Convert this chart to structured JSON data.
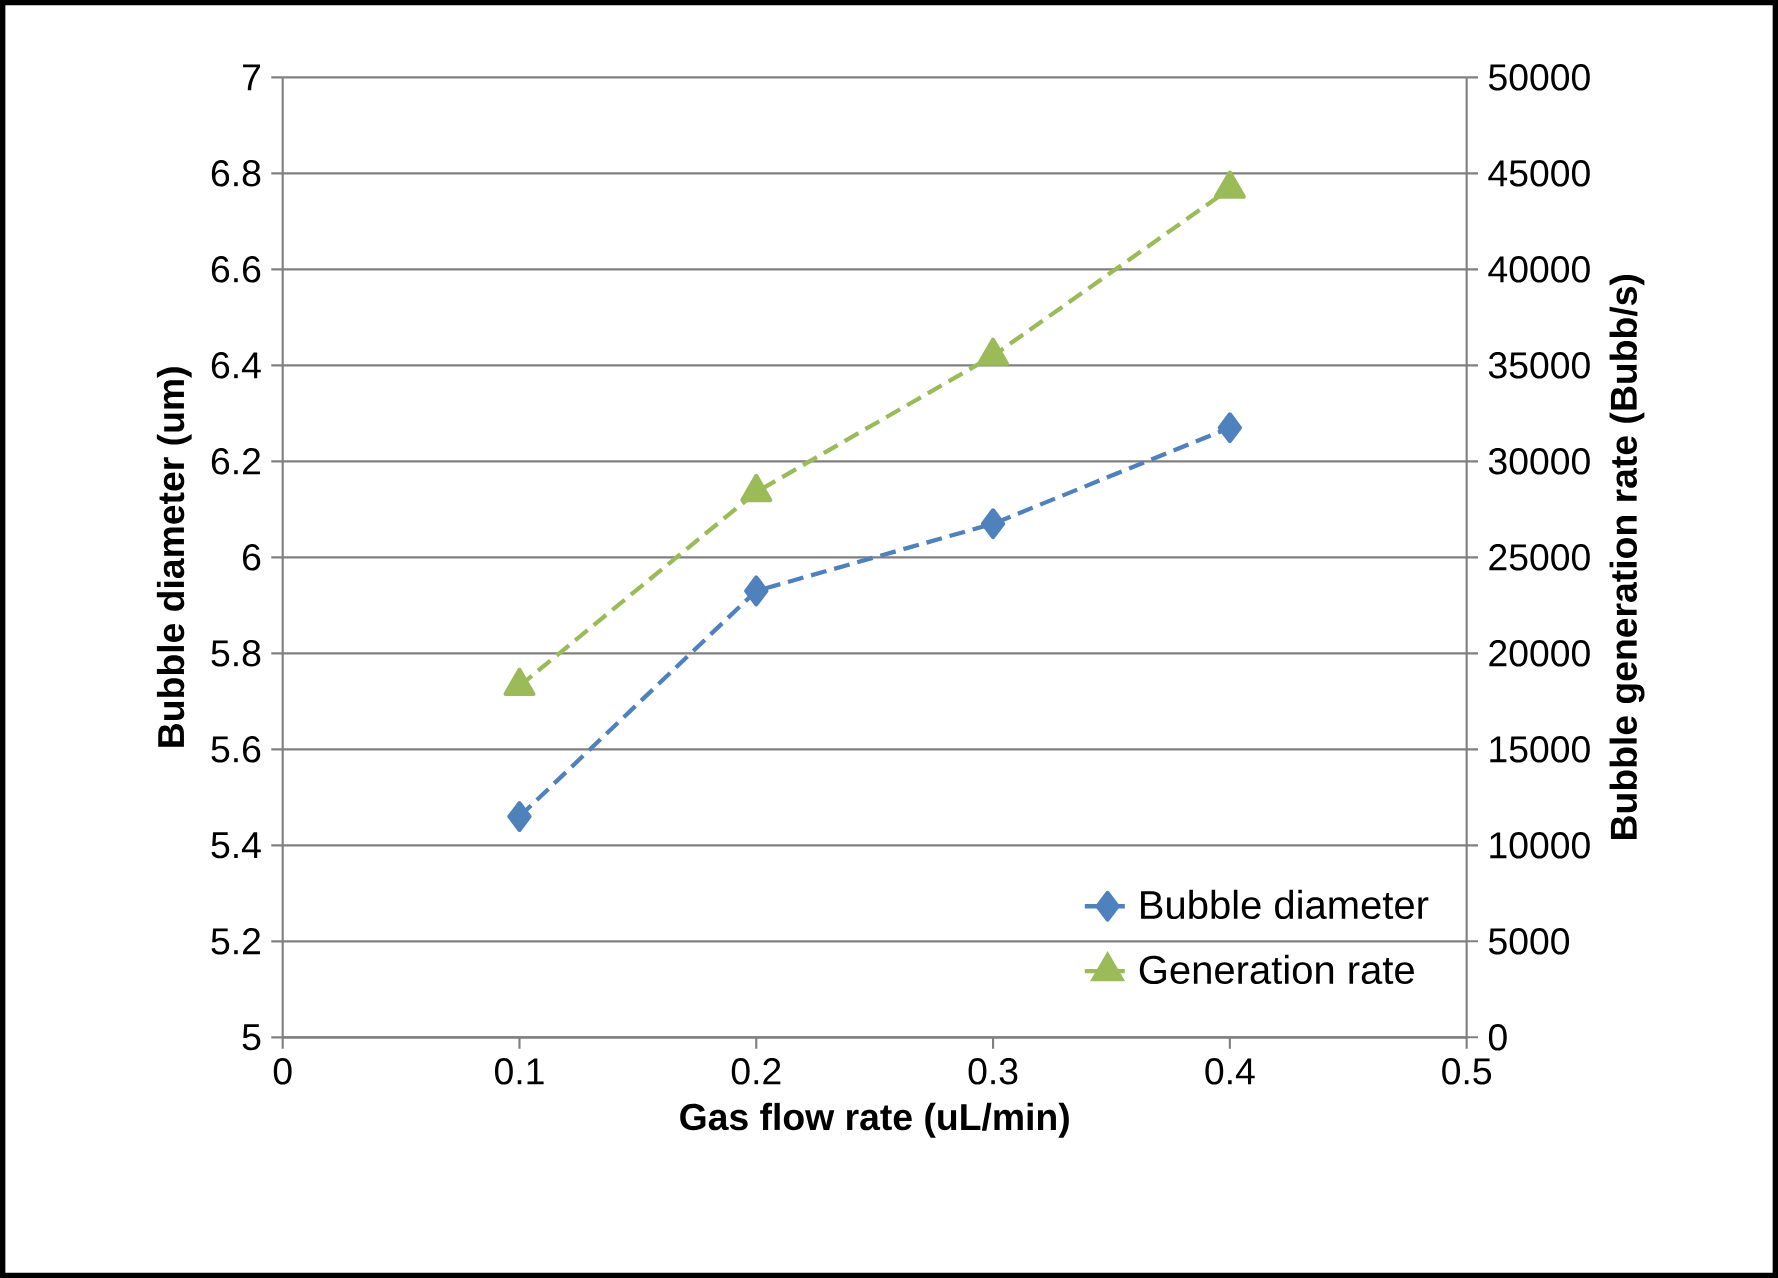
{
  "chart_data": {
    "type": "line",
    "xlabel": "Gas flow rate (uL/min)",
    "ylabel": "Bubble diameter (um)",
    "y2label": "Bubble generation rate (Bubb/s)",
    "x": [
      0.1,
      0.2,
      0.3,
      0.4
    ],
    "series": [
      {
        "name": "Bubble diameter",
        "color": "#4f81bd",
        "values": [
          5.46,
          5.93,
          6.07,
          6.27
        ],
        "marker": "diamond"
      },
      {
        "name": "Generation rate",
        "color": "#9bbb59",
        "values": [
          18300,
          28400,
          35500,
          44200
        ],
        "marker": "triangle",
        "axis": "y2"
      }
    ],
    "xlim": [
      0,
      0.5
    ],
    "xticks": [
      0,
      0.1,
      0.2,
      0.3,
      0.4,
      0.5
    ],
    "ylim": [
      5,
      7
    ],
    "yticks": [
      5,
      5.2,
      5.4,
      5.6,
      5.8,
      6,
      6.2,
      6.4,
      6.6,
      6.8,
      7
    ],
    "y2lim": [
      0,
      50000
    ],
    "y2ticks": [
      0,
      5000,
      10000,
      15000,
      20000,
      25000,
      30000,
      35000,
      40000,
      45000,
      50000
    ],
    "grid": "y",
    "legend": "bottom right",
    "line_style": "dashed"
  }
}
